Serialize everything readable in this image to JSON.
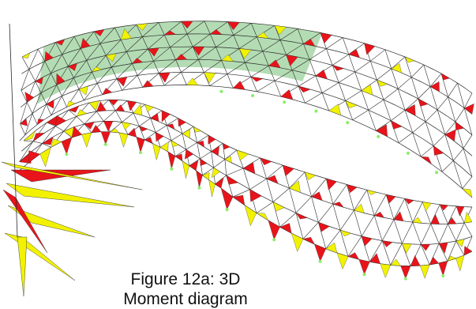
{
  "caption": {
    "line1": "Figure 12a:  3D",
    "line2": "Moment diagram"
  },
  "colors": {
    "truss": "#2a2a2a",
    "moment_positive": "#e8141a",
    "moment_negative": "#f2f200",
    "highlight_panel": "#8cc98c",
    "support_node": "#88ee66",
    "background": "#ffffff"
  }
}
